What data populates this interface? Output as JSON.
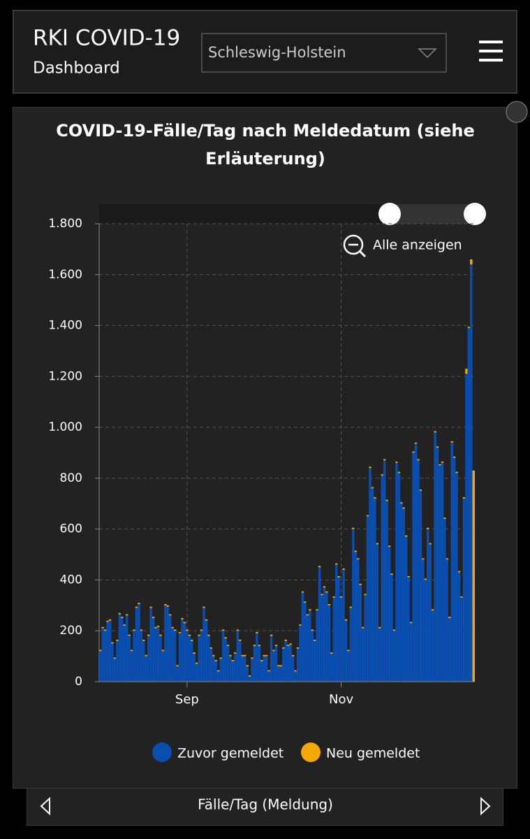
{
  "header": {
    "title": "RKI COVID-19",
    "subtitle": "Dashboard",
    "dropdown": "Schleswig-Holstein"
  },
  "chart_data": {
    "type": "stacked-bar",
    "title": "COVID-19-Fälle/Tag nach Meldedatum (siehe Erläuterung)",
    "reset_zoom_label": "Alle anzeigen",
    "categories": [
      null,
      null,
      null,
      null,
      null,
      null,
      null,
      null,
      null,
      null,
      null,
      null,
      null,
      null,
      null,
      null,
      null,
      null,
      null,
      null,
      null,
      null,
      null,
      null,
      null,
      null,
      null,
      null,
      null,
      null,
      null,
      null,
      null,
      null,
      null,
      null,
      "Sep",
      null,
      null,
      null,
      null,
      null,
      null,
      null,
      null,
      null,
      null,
      null,
      null,
      null,
      null,
      null,
      null,
      null,
      null,
      null,
      null,
      null,
      null,
      null,
      null,
      null,
      null,
      null,
      null,
      null,
      null,
      null,
      null,
      null,
      null,
      null,
      null,
      null,
      null,
      null,
      null,
      null,
      null,
      null,
      null,
      null,
      null,
      null,
      null,
      null,
      null,
      null,
      null,
      null,
      null,
      null,
      null,
      null,
      null,
      null,
      null,
      null,
      null,
      null,
      "Nov",
      null,
      null,
      null,
      null,
      null,
      null,
      null,
      null,
      null,
      null,
      null,
      null,
      null,
      null,
      null,
      null,
      null,
      null,
      null,
      null,
      null,
      null,
      null,
      null,
      null,
      null,
      null,
      null,
      null,
      null,
      null,
      null,
      null,
      null,
      null,
      null,
      null,
      null,
      null,
      null,
      null,
      null,
      null,
      null,
      null,
      null,
      null,
      null,
      null,
      null,
      null,
      null,
      null,
      null,
      null
    ],
    "series": [
      {
        "name": "Zuvor gemeldet",
        "color": "#0a4eb0",
        "values": [
          120,
          210,
          200,
          235,
          240,
          150,
          90,
          160,
          265,
          250,
          220,
          260,
          180,
          120,
          200,
          290,
          305,
          200,
          160,
          100,
          180,
          290,
          250,
          210,
          215,
          180,
          120,
          300,
          295,
          260,
          210,
          200,
          60,
          190,
          245,
          230,
          200,
          180,
          160,
          110,
          70,
          180,
          200,
          290,
          240,
          180,
          130,
          100,
          80,
          40,
          90,
          200,
          170,
          140,
          100,
          80,
          110,
          200,
          160,
          100,
          100,
          60,
          20,
          90,
          140,
          190,
          140,
          80,
          100,
          100,
          40,
          180,
          120,
          140,
          60,
          60,
          130,
          160,
          140,
          145,
          100,
          40,
          130,
          220,
          350,
          310,
          260,
          280,
          200,
          160,
          280,
          450,
          340,
          370,
          350,
          300,
          110,
          330,
          460,
          410,
          330,
          440,
          240,
          120,
          290,
          600,
          510,
          480,
          380,
          210,
          340,
          650,
          840,
          760,
          720,
          540,
          210,
          810,
          870,
          710,
          530,
          420,
          200,
          860,
          820,
          700,
          680,
          570,
          410,
          230,
          900,
          935,
          870,
          750,
          480,
          400,
          600,
          540,
          280,
          980,
          920,
          850,
          860,
          640,
          480,
          250,
          940,
          880,
          820,
          430,
          330,
          720,
          1210,
          1390,
          1640,
          0
        ]
      },
      {
        "name": "Neu gemeldet",
        "color": "#f5a800",
        "values": [
          5,
          5,
          5,
          5,
          5,
          5,
          5,
          5,
          5,
          5,
          5,
          5,
          5,
          5,
          5,
          5,
          5,
          5,
          5,
          5,
          5,
          5,
          5,
          5,
          5,
          5,
          5,
          5,
          5,
          5,
          5,
          5,
          5,
          5,
          5,
          5,
          5,
          5,
          5,
          5,
          5,
          5,
          5,
          5,
          5,
          5,
          5,
          5,
          5,
          5,
          5,
          5,
          5,
          5,
          5,
          5,
          5,
          5,
          5,
          5,
          5,
          5,
          5,
          5,
          5,
          5,
          5,
          5,
          5,
          5,
          5,
          5,
          5,
          5,
          5,
          5,
          5,
          5,
          5,
          5,
          5,
          5,
          5,
          5,
          5,
          5,
          5,
          5,
          5,
          5,
          5,
          5,
          5,
          5,
          5,
          5,
          5,
          5,
          5,
          5,
          5,
          5,
          5,
          5,
          5,
          5,
          5,
          5,
          5,
          5,
          5,
          5,
          5,
          5,
          5,
          5,
          5,
          5,
          5,
          5,
          5,
          5,
          5,
          5,
          5,
          5,
          5,
          5,
          5,
          5,
          5,
          5,
          5,
          5,
          5,
          5,
          5,
          5,
          5,
          5,
          5,
          5,
          5,
          5,
          5,
          5,
          5,
          5,
          5,
          5,
          5,
          5,
          20,
          5,
          20,
          830
        ]
      }
    ],
    "ylim": [
      0,
      1800
    ],
    "yticks": [
      0,
      200,
      400,
      600,
      800,
      {
        "value": 1000,
        "label": "1.000"
      },
      {
        "value": 1200,
        "label": "1.200"
      },
      {
        "value": 1400,
        "label": "1.400"
      },
      {
        "value": 1600,
        "label": "1.600"
      },
      {
        "value": 1800,
        "label": "1.800"
      }
    ],
    "grid": true
  },
  "footer": {
    "title": "Fälle/Tag (Meldung)"
  }
}
